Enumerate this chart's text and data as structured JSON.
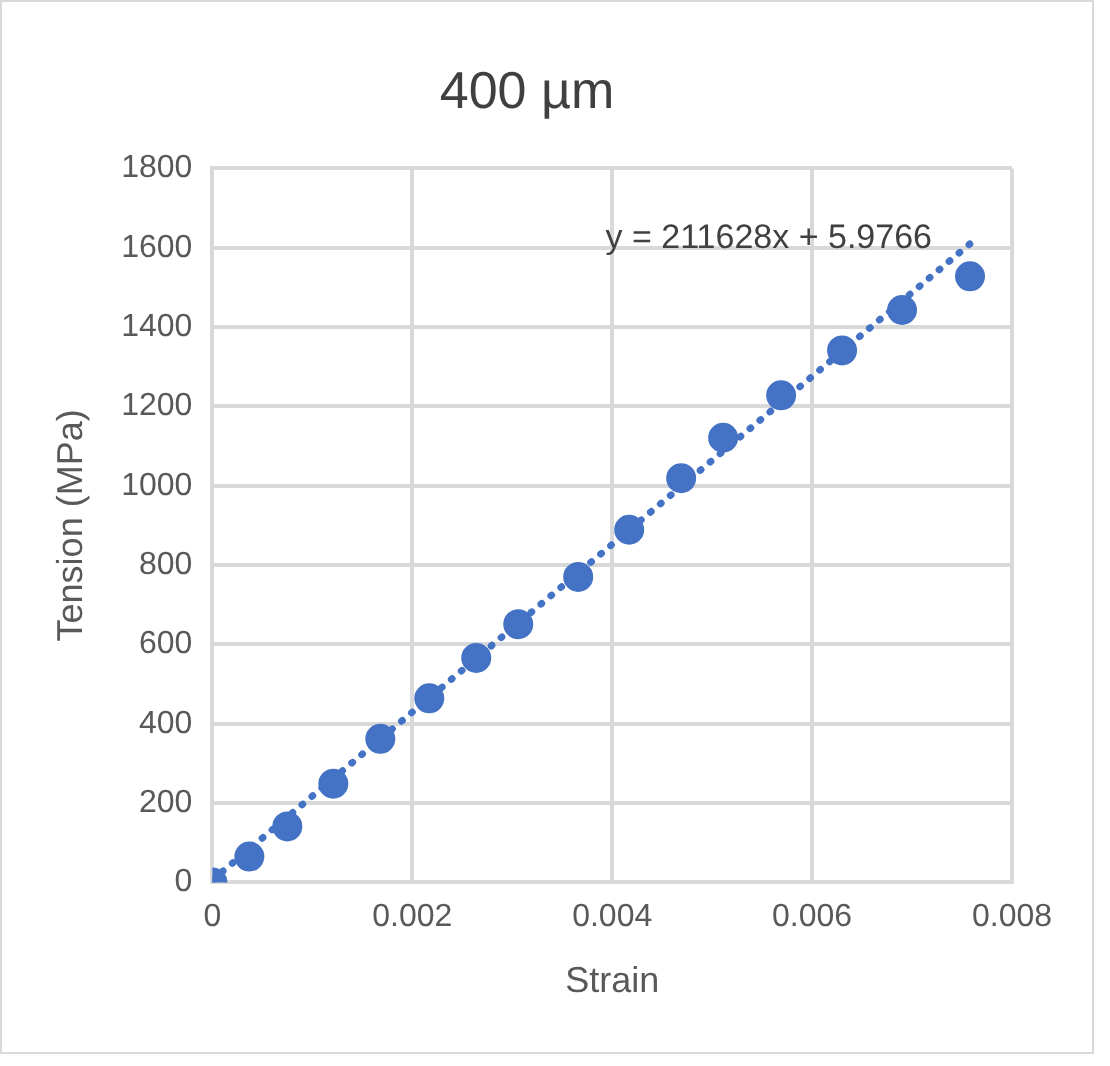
{
  "chart_data": {
    "type": "scatter",
    "title": "400 µm",
    "xlabel": "Strain",
    "ylabel": "Tension (MPa)",
    "xlim": [
      0,
      0.008
    ],
    "xticks": [
      0,
      0.002,
      0.004,
      0.006,
      0.008
    ],
    "ylim": [
      0,
      1800
    ],
    "yticks": [
      0,
      200,
      400,
      600,
      800,
      1000,
      1200,
      1400,
      1600,
      1800
    ],
    "grid": true,
    "series": [
      {
        "type": "scatter",
        "marker": "circle",
        "color": "#4472c4",
        "x": [
          0,
          0.00037,
          0.00075,
          0.00121,
          0.00168,
          0.00217,
          0.00264,
          0.00306,
          0.00366,
          0.00417,
          0.00469,
          0.00511,
          0.00569,
          0.0063,
          0.0069,
          0.00758
        ],
        "values": [
          0,
          65,
          141,
          249,
          362,
          464,
          566,
          651,
          770,
          889,
          1019,
          1121,
          1228,
          1341,
          1443,
          1528
        ]
      },
      {
        "type": "line",
        "color": "#4472c4",
        "line_style": "dotted",
        "x": [
          0,
          0.0076
        ],
        "values": [
          6,
          1614
        ]
      }
    ],
    "annotations": [
      "y = 211628x + 5.9766"
    ]
  }
}
